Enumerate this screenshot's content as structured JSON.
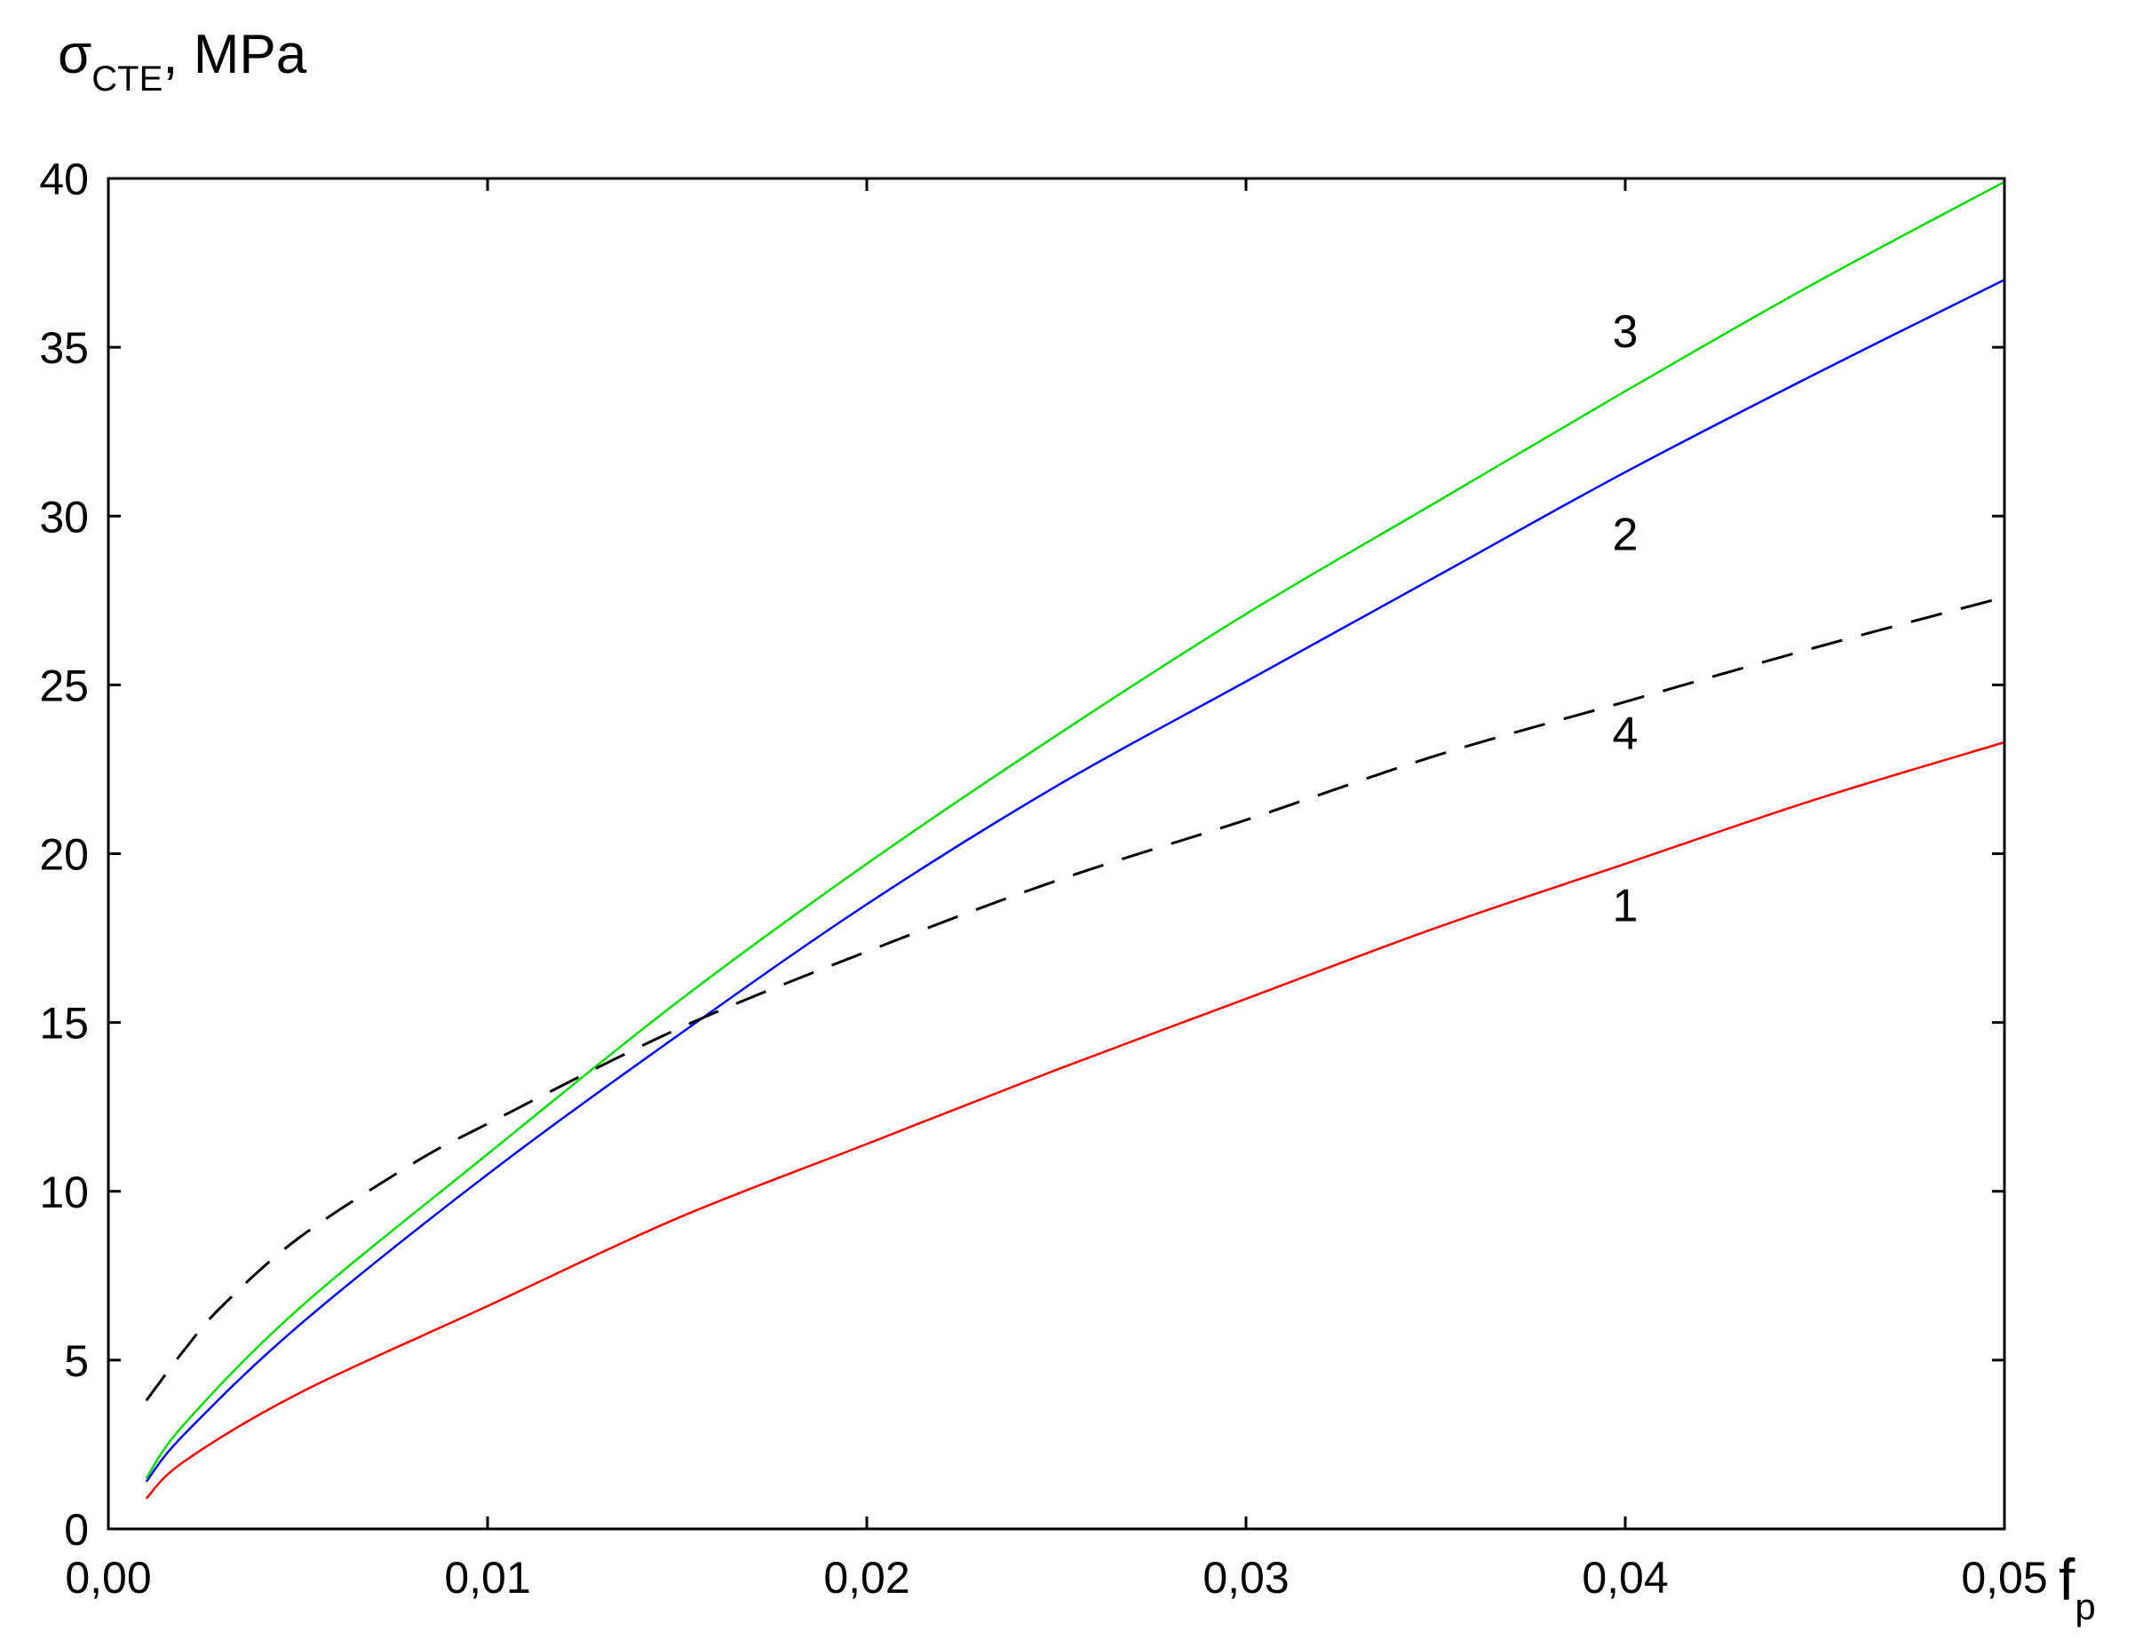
{
  "chart_data": {
    "type": "line",
    "title": "",
    "ylabel": {
      "symbol": "σ",
      "subscript": "CTE",
      "suffix": ", MPa"
    },
    "xlabel": {
      "symbol": "f",
      "subscript": "p"
    },
    "xlim": [
      0,
      0.05
    ],
    "ylim": [
      0,
      40
    ],
    "x_ticks": [
      0,
      0.01,
      0.02,
      0.03,
      0.04,
      0.05
    ],
    "x_tick_labels": [
      "0,00",
      "0,01",
      "0,02",
      "0,03",
      "0,04",
      "0,05"
    ],
    "y_ticks": [
      0,
      5,
      10,
      15,
      20,
      25,
      30,
      35,
      40
    ],
    "y_tick_labels": [
      "0",
      "5",
      "10",
      "15",
      "20",
      "25",
      "30",
      "35",
      "40"
    ],
    "grid": false,
    "series": [
      {
        "name": "1",
        "color": "#ff0000",
        "dash": "solid",
        "x": [
          0.001,
          0.002,
          0.005,
          0.01,
          0.015,
          0.02,
          0.025,
          0.03,
          0.035,
          0.04,
          0.045,
          0.05
        ],
        "y": [
          0.9,
          2.0,
          4.0,
          6.6,
          9.2,
          11.4,
          13.6,
          15.7,
          17.8,
          19.7,
          21.6,
          23.3
        ],
        "label_at": [
          0.04,
          18.0
        ]
      },
      {
        "name": "2",
        "color": "#0000ff",
        "dash": "solid",
        "x": [
          0.001,
          0.002,
          0.005,
          0.01,
          0.015,
          0.02,
          0.025,
          0.03,
          0.035,
          0.04,
          0.045,
          0.05
        ],
        "y": [
          1.4,
          2.8,
          6.0,
          10.5,
          14.6,
          18.5,
          22.0,
          25.1,
          28.2,
          31.3,
          34.2,
          37.0
        ],
        "label_at": [
          0.04,
          29.0
        ]
      },
      {
        "name": "3",
        "color": "#00dd00",
        "dash": "solid",
        "x": [
          0.001,
          0.002,
          0.005,
          0.01,
          0.015,
          0.02,
          0.025,
          0.03,
          0.035,
          0.04,
          0.045,
          0.05
        ],
        "y": [
          1.5,
          3.1,
          6.5,
          11.1,
          15.6,
          19.7,
          23.5,
          27.1,
          30.4,
          33.7,
          36.9,
          39.9
        ],
        "label_at": [
          0.04,
          35.0
        ]
      },
      {
        "name": "4",
        "color": "#000000",
        "dash": "dashed",
        "x": [
          0.001,
          0.002,
          0.003,
          0.005,
          0.008,
          0.01,
          0.015,
          0.02,
          0.025,
          0.03,
          0.035,
          0.04,
          0.045,
          0.05
        ],
        "y": [
          3.8,
          5.3,
          6.6,
          8.6,
          10.8,
          12.0,
          14.8,
          17.1,
          19.2,
          21.0,
          22.9,
          24.5,
          26.1,
          27.6
        ],
        "label_at": [
          0.04,
          23.1
        ]
      }
    ]
  }
}
